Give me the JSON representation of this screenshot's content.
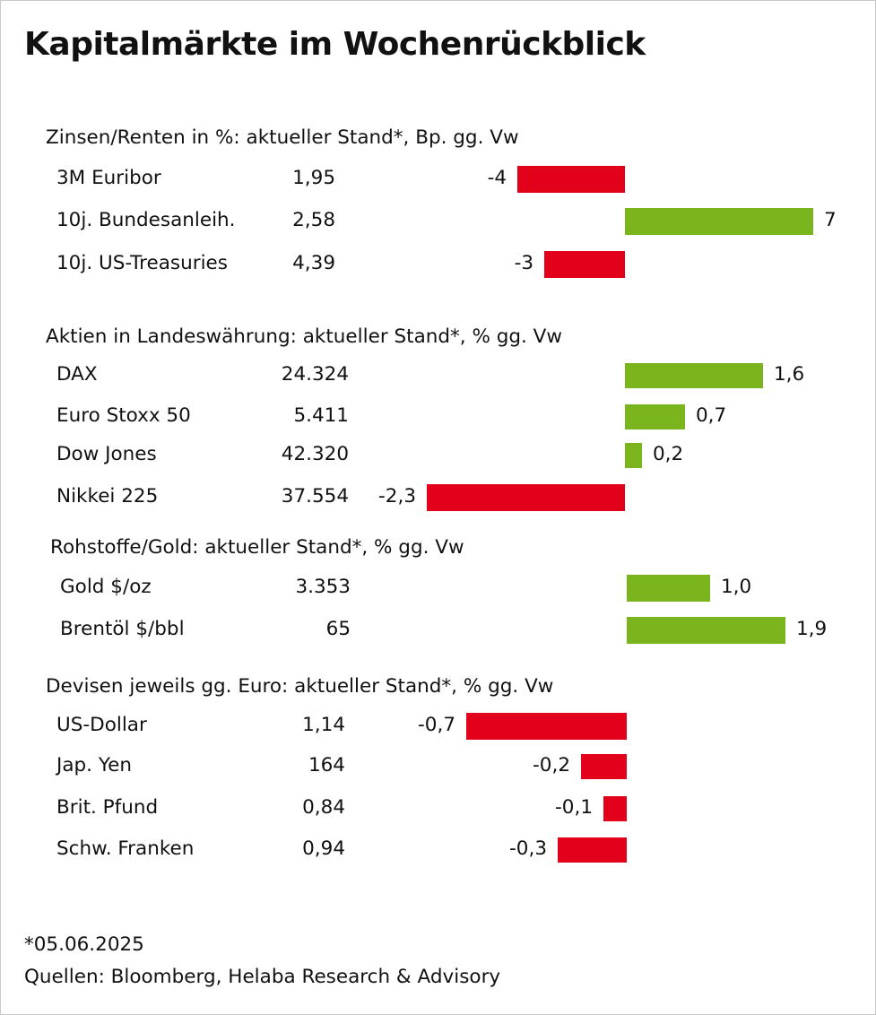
{
  "title": "Kapitalmärkte im Wochenrückblick",
  "colors": {
    "positive": "#7ab51d",
    "negative": "#e2001a"
  },
  "chart_data": {
    "type": "bar",
    "orientation": "horizontal",
    "sections": [
      {
        "title": "Zinsen/Renten in %: aktueller Stand*, Bp. gg. Vw",
        "unit_scale": 30,
        "rows": [
          {
            "label": "3M Euribor",
            "value": "1,95",
            "change": -4,
            "change_label": "-4"
          },
          {
            "label": "10j. Bundesanleih.",
            "value": "2,58",
            "change": 7,
            "change_label": "7"
          },
          {
            "label": "10j. US-Treasuries",
            "value": "4,39",
            "change": -3,
            "change_label": "-3"
          }
        ]
      },
      {
        "title": "Aktien in Landeswährung: aktueller Stand*, % gg. Vw",
        "unit_scale": 96,
        "rows": [
          {
            "label": "DAX",
            "value": "24.324",
            "change": 1.6,
            "change_label": "1,6"
          },
          {
            "label": "Euro Stoxx 50",
            "value": "5.411",
            "change": 0.7,
            "change_label": "0,7"
          },
          {
            "label": "Dow Jones",
            "value": "42.320",
            "change": 0.2,
            "change_label": "0,2"
          },
          {
            "label": "Nikkei 225",
            "value": "37.554",
            "change": -2.3,
            "change_label": "-2,3"
          }
        ]
      },
      {
        "title": "Rohstoffe/Gold: aktueller Stand*, % gg. Vw",
        "unit_scale": 93,
        "rows": [
          {
            "label": "Gold $/oz",
            "value": "3.353",
            "change": 1.0,
            "change_label": "1,0"
          },
          {
            "label": "Brentöl $/bbl",
            "value": "65",
            "change": 1.9,
            "change_label": "1,9"
          }
        ]
      },
      {
        "title": "Devisen jeweils gg. Euro: aktueller Stand*, % gg. Vw",
        "unit_scale": 255,
        "rows": [
          {
            "label": "US-Dollar",
            "value": "1,14",
            "change": -0.7,
            "change_label": "-0,7"
          },
          {
            "label": "Jap. Yen",
            "value": "164",
            "change": -0.2,
            "change_label": "-0,2"
          },
          {
            "label": "Brit. Pfund",
            "value": "0,84",
            "change": -0.1,
            "change_label": "-0,1"
          },
          {
            "label": "Schw. Franken",
            "value": "0,94",
            "change": -0.3,
            "change_label": "-0,3"
          }
        ]
      }
    ]
  },
  "footnote": "*05.06.2025",
  "source": "Quellen: Bloomberg, Helaba Research & Advisory"
}
